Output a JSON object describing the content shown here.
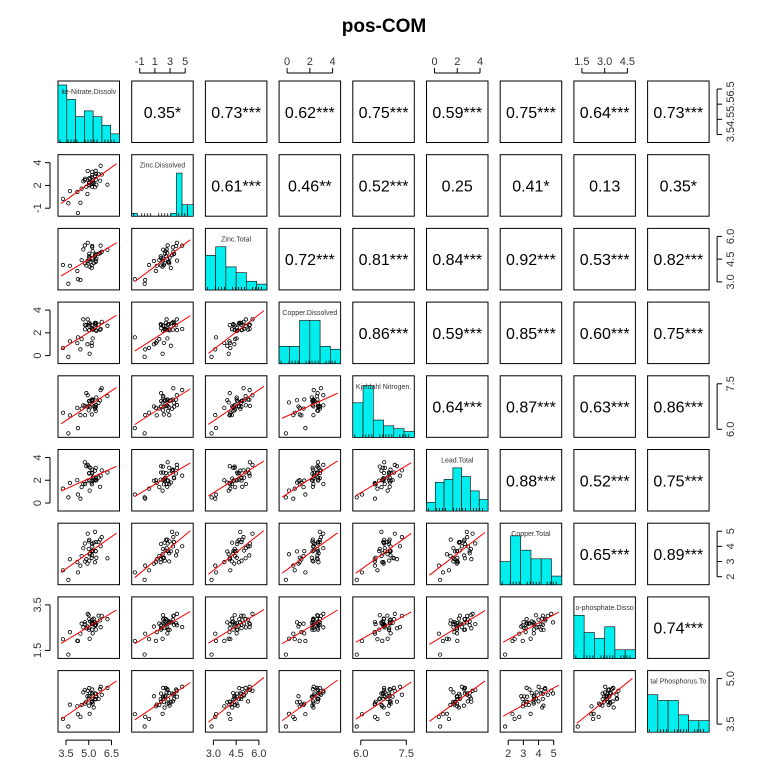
{
  "title": "pos-COM",
  "chart_data": {
    "type": "scatter",
    "title": "pos-COM",
    "variables": [
      "Nitrite-Nitrate.Dissolved",
      "Zinc.Dissolved",
      "Zinc.Total",
      "Copper.Dissolved",
      "Kjeldahl Nitrogen.Total",
      "Lead.Total",
      "Copper.Total",
      "Ortho-phosphate.Dissolved",
      "Total Phosphorus.Total"
    ],
    "diag_labels": [
      "ite-Nitrate.Dissolv",
      "Zinc.Dissolved",
      "Zinc.Total",
      "Copper.Dissolved",
      "Kjeldahl Nitrogen.",
      "Lead.Total",
      "Copper.Total",
      "o-phosphate.Disso",
      "tal Phosphorus.To"
    ],
    "ranges": [
      [
        3.1,
        7.0
      ],
      [
        -1.5,
        6.0
      ],
      [
        2.9,
        6.4
      ],
      [
        -0.8,
        5.8
      ],
      [
        5.6,
        8.4
      ],
      [
        -0.9,
        5.3
      ],
      [
        1.4,
        5.6
      ],
      [
        1.2,
        5.4
      ],
      [
        2.9,
        6.4
      ]
    ],
    "axis_ticks": {
      "top": [
        {
          "var": 1,
          "ticks": [
            "-1",
            "1",
            "3",
            "5"
          ]
        },
        {
          "var": 3,
          "ticks": [
            "0",
            "2",
            "4"
          ]
        },
        {
          "var": 5,
          "ticks": [
            "0",
            "2",
            "4"
          ]
        },
        {
          "var": 7,
          "ticks": [
            "1.5",
            "3.0",
            "4.5"
          ]
        }
      ],
      "bottom": [
        {
          "var": 0,
          "ticks": [
            "3.5",
            "5.0",
            "6.5"
          ]
        },
        {
          "var": 2,
          "ticks": [
            "3.0",
            "4.5",
            "6.0"
          ]
        },
        {
          "var": 4,
          "ticks": [
            "6.0",
            "7.5"
          ]
        },
        {
          "var": 6,
          "ticks": [
            "2",
            "3",
            "4",
            "5"
          ]
        }
      ],
      "left": [
        {
          "var": 1,
          "ticks": [
            "-1",
            "2",
            "4"
          ]
        },
        {
          "var": 3,
          "ticks": [
            "0",
            "2",
            "4"
          ]
        },
        {
          "var": 5,
          "ticks": [
            "0",
            "2",
            "4"
          ]
        },
        {
          "var": 7,
          "ticks": [
            "1.5",
            "3.5"
          ]
        }
      ],
      "right": [
        {
          "var": 0,
          "ticks": [
            "3.5",
            "4.5",
            "5.5",
            "6.5"
          ]
        },
        {
          "var": 2,
          "ticks": [
            "3.0",
            "4.5",
            "6.0"
          ]
        },
        {
          "var": 4,
          "ticks": [
            "6.0",
            "7.5"
          ]
        },
        {
          "var": 6,
          "ticks": [
            "2",
            "3",
            "4",
            "5"
          ]
        },
        {
          "var": 8,
          "ticks": [
            "3.5",
            "5.0"
          ]
        }
      ]
    },
    "correlations": [
      {
        "row": 0,
        "col": 1,
        "label": "0.35*"
      },
      {
        "row": 0,
        "col": 2,
        "label": "0.73***"
      },
      {
        "row": 0,
        "col": 3,
        "label": "0.62***"
      },
      {
        "row": 0,
        "col": 4,
        "label": "0.75***"
      },
      {
        "row": 0,
        "col": 5,
        "label": "0.59***"
      },
      {
        "row": 0,
        "col": 6,
        "label": "0.75***"
      },
      {
        "row": 0,
        "col": 7,
        "label": "0.64***"
      },
      {
        "row": 0,
        "col": 8,
        "label": "0.73***"
      },
      {
        "row": 1,
        "col": 2,
        "label": "0.61***"
      },
      {
        "row": 1,
        "col": 3,
        "label": "0.46**"
      },
      {
        "row": 1,
        "col": 4,
        "label": "0.52***"
      },
      {
        "row": 1,
        "col": 5,
        "label": "0.25"
      },
      {
        "row": 1,
        "col": 6,
        "label": "0.41*"
      },
      {
        "row": 1,
        "col": 7,
        "label": "0.13"
      },
      {
        "row": 1,
        "col": 8,
        "label": "0.35*"
      },
      {
        "row": 2,
        "col": 3,
        "label": "0.72***"
      },
      {
        "row": 2,
        "col": 4,
        "label": "0.81***"
      },
      {
        "row": 2,
        "col": 5,
        "label": "0.84***"
      },
      {
        "row": 2,
        "col": 6,
        "label": "0.92***"
      },
      {
        "row": 2,
        "col": 7,
        "label": "0.53***"
      },
      {
        "row": 2,
        "col": 8,
        "label": "0.82***"
      },
      {
        "row": 3,
        "col": 4,
        "label": "0.86***"
      },
      {
        "row": 3,
        "col": 5,
        "label": "0.59***"
      },
      {
        "row": 3,
        "col": 6,
        "label": "0.85***"
      },
      {
        "row": 3,
        "col": 7,
        "label": "0.60***"
      },
      {
        "row": 3,
        "col": 8,
        "label": "0.75***"
      },
      {
        "row": 4,
        "col": 5,
        "label": "0.64***"
      },
      {
        "row": 4,
        "col": 6,
        "label": "0.87***"
      },
      {
        "row": 4,
        "col": 7,
        "label": "0.63***"
      },
      {
        "row": 4,
        "col": 8,
        "label": "0.86***"
      },
      {
        "row": 5,
        "col": 6,
        "label": "0.88***"
      },
      {
        "row": 5,
        "col": 7,
        "label": "0.52***"
      },
      {
        "row": 5,
        "col": 8,
        "label": "0.75***"
      },
      {
        "row": 6,
        "col": 7,
        "label": "0.65***"
      },
      {
        "row": 6,
        "col": 8,
        "label": "0.89***"
      },
      {
        "row": 7,
        "col": 8,
        "label": "0.74***"
      }
    ],
    "histograms": [
      [
        1.0,
        0.75,
        0.45,
        0.55,
        0.45,
        0.3,
        0.15
      ],
      [
        0.05,
        0,
        0,
        0,
        0,
        0,
        0,
        0.05,
        0.75,
        0.2,
        0.2
      ],
      [
        0.6,
        0.75,
        0.4,
        0.3,
        0.15,
        0.1
      ],
      [
        0.3,
        0.3,
        0.75,
        0.75,
        0.3,
        0.25
      ],
      [
        0.6,
        0.9,
        0.3,
        0.2,
        0.15,
        0.1
      ],
      [
        0.15,
        0.5,
        0.55,
        0.75,
        0.6,
        0.35,
        0.2
      ],
      [
        0.4,
        0.85,
        0.6,
        0.45,
        0.45,
        0.15
      ],
      [
        0.75,
        0.45,
        0.35,
        0.55,
        0.15,
        0.15
      ],
      [
        0.65,
        0.55,
        0.55,
        0.3,
        0.2,
        0.2
      ]
    ],
    "colors": {
      "hist": "#00EEEE",
      "smooth": "#ff0000",
      "points": "#000000"
    },
    "grid": false,
    "legend": "none"
  }
}
